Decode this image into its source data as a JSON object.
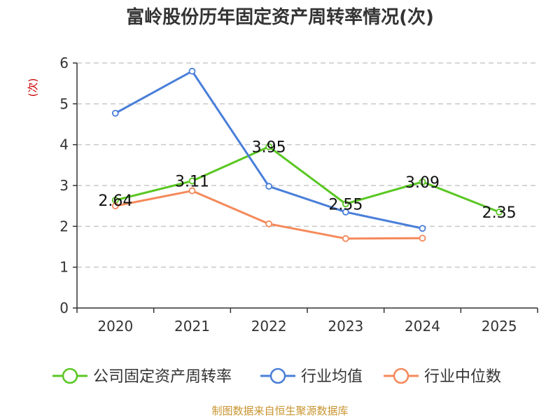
{
  "chart_data": {
    "type": "line",
    "title": "富岭股份历年固定资产周转率情况(次)",
    "ylabel": "(次)",
    "xlabel": "",
    "categories": [
      "2020",
      "2021",
      "2022",
      "2023",
      "2024",
      "2025"
    ],
    "ylim": [
      0,
      6
    ],
    "yticks": [
      0,
      1,
      2,
      3,
      4,
      5,
      6
    ],
    "grid": true,
    "legend_position": "bottom",
    "series": [
      {
        "name": "公司固定资产周转率",
        "color": "#5ac723",
        "values": [
          2.64,
          3.11,
          3.95,
          2.55,
          3.09,
          2.35
        ],
        "labels": [
          "2.64",
          "3.11",
          "3.95",
          "2.55",
          "3.09",
          "2.35"
        ]
      },
      {
        "name": "行业均值",
        "color": "#4a7fd9",
        "values": [
          4.77,
          5.8,
          2.98,
          2.35,
          1.95,
          null
        ]
      },
      {
        "name": "行业中位数",
        "color": "#f5895a",
        "values": [
          2.5,
          2.87,
          2.06,
          1.7,
          1.71,
          null
        ]
      }
    ]
  },
  "source": "制图数据来自恒生聚源数据库"
}
